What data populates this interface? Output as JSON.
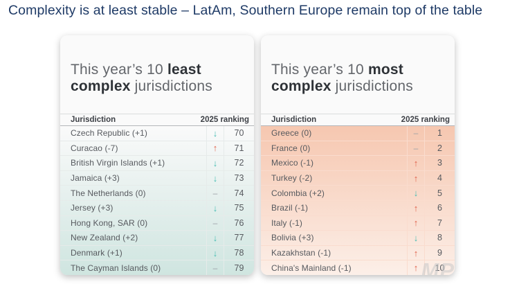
{
  "page_title": "Complexity is at least stable – LatAm, Southern Europe remain top of the table",
  "watermark": "MP",
  "icons": {
    "up": "↑",
    "down": "↓",
    "none": "–"
  },
  "colors": {
    "accent_title": "#1e3a66",
    "arrow_up": "#e0614a",
    "arrow_down": "#43bcb1",
    "arrow_none": "#9aa0a6",
    "least_gradient_top": "#fafafa",
    "least_gradient_bottom": "#cfe5e0",
    "most_gradient_top": "#f6c7b0",
    "most_gradient_bottom": "#fcefe8"
  },
  "columns": {
    "jurisdiction": "Jurisdiction",
    "ranking": "2025 ranking"
  },
  "tables": [
    {
      "key": "least",
      "title_prefix": "This year’s 10 ",
      "title_bold": "least complex",
      "title_suffix": " jurisdictions",
      "rows": [
        {
          "name": "Czech Republic (+1)",
          "direction": "down",
          "rank": "70"
        },
        {
          "name": "Curacao (-7)",
          "direction": "up",
          "rank": "71"
        },
        {
          "name": "British Virgin Islands (+1)",
          "direction": "down",
          "rank": "72"
        },
        {
          "name": "Jamaica (+3)",
          "direction": "down",
          "rank": "73"
        },
        {
          "name": "The Netherlands (0)",
          "direction": "none",
          "rank": "74"
        },
        {
          "name": "Jersey (+3)",
          "direction": "down",
          "rank": "75"
        },
        {
          "name": "Hong Kong, SAR (0)",
          "direction": "none",
          "rank": "76"
        },
        {
          "name": "New Zealand (+2)",
          "direction": "down",
          "rank": "77"
        },
        {
          "name": "Denmark (+1)",
          "direction": "down",
          "rank": "78"
        },
        {
          "name": "The Cayman Islands (0)",
          "direction": "none",
          "rank": "79"
        }
      ]
    },
    {
      "key": "most",
      "title_prefix": "This year’s 10 ",
      "title_bold": "most complex",
      "title_suffix": " jurisdictions",
      "rows": [
        {
          "name": "Greece (0)",
          "direction": "none",
          "rank": "1"
        },
        {
          "name": "France (0)",
          "direction": "none",
          "rank": "2"
        },
        {
          "name": "Mexico (-1)",
          "direction": "up",
          "rank": "3"
        },
        {
          "name": "Turkey (-2)",
          "direction": "up",
          "rank": "4"
        },
        {
          "name": "Colombia (+2)",
          "direction": "down",
          "rank": "5"
        },
        {
          "name": "Brazil (-1)",
          "direction": "up",
          "rank": "6"
        },
        {
          "name": "Italy (-1)",
          "direction": "up",
          "rank": "7"
        },
        {
          "name": "Bolivia (+3)",
          "direction": "down",
          "rank": "8"
        },
        {
          "name": "Kazakhstan (-1)",
          "direction": "up",
          "rank": "9"
        },
        {
          "name": "China's Mainland (-1)",
          "direction": "up",
          "rank": "10"
        }
      ]
    }
  ]
}
